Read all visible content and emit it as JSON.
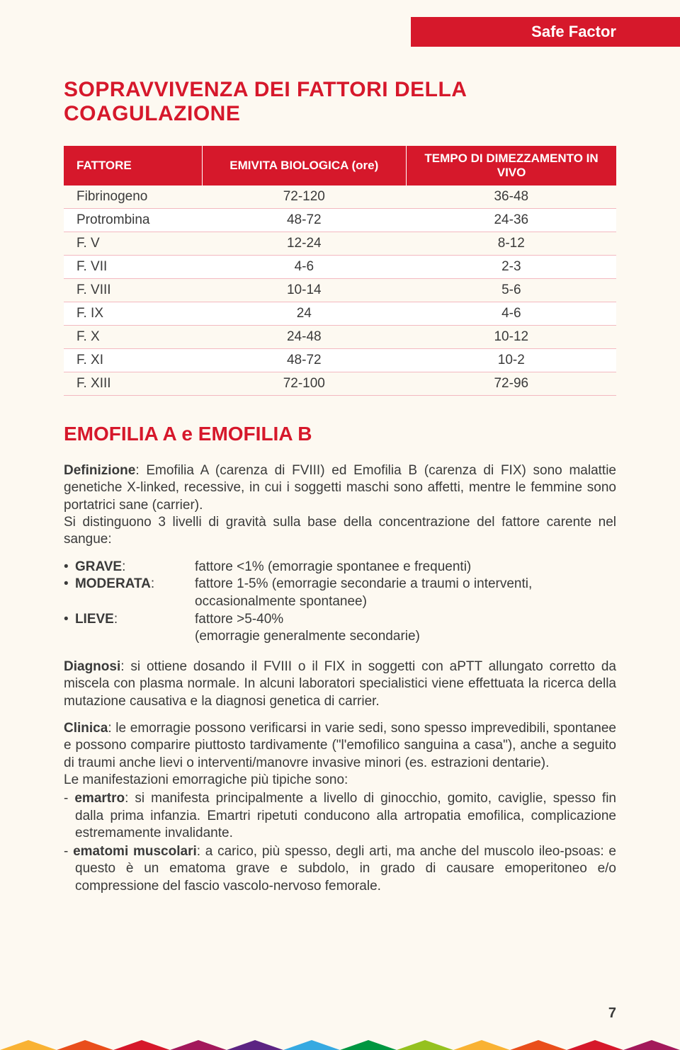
{
  "header": {
    "label": "Safe Factor"
  },
  "main_title": "SOPRAVVIVENZA DEI FATTORI DELLA COAGULAZIONE",
  "table": {
    "columns": [
      "FATTORE",
      "EMIVITA BIOLOGICA (ore)",
      "TEMPO DI DIMEZZAMENTO IN VIVO"
    ],
    "rows": [
      [
        "Fibrinogeno",
        "72-120",
        "36-48"
      ],
      [
        "Protrombina",
        "48-72",
        "24-36"
      ],
      [
        "F. V",
        "12-24",
        "8-12"
      ],
      [
        "F. VII",
        "4-6",
        "2-3"
      ],
      [
        "F. VIII",
        "10-14",
        "5-6"
      ],
      [
        "F. IX",
        "24",
        "4-6"
      ],
      [
        "F. X",
        "24-48",
        "10-12"
      ],
      [
        "F. XI",
        "48-72",
        "10-2"
      ],
      [
        "F. XIII",
        "72-100",
        "72-96"
      ]
    ],
    "header_bg": "#d6182b",
    "row_border": "#f3b9c0"
  },
  "section_title": "EMOFILIA A e EMOFILIA B",
  "definition": {
    "label": "Definizione",
    "text": ": Emofilia A (carenza di FVIII) ed Emofilia B (carenza di FIX) sono malattie genetiche X-linked, recessive, in cui i soggetti maschi sono affetti, mentre le femmine sono portatrici sane (carrier).",
    "text2": "Si distinguono 3 livelli di gravità sulla base della concentrazione del fattore carente nel sangue:"
  },
  "severity": [
    {
      "label": "GRAVE",
      "desc": "fattore <1% (emorragie spontanee e frequenti)"
    },
    {
      "label": "MODERATA",
      "desc": "fattore 1-5% (emorragie secondarie a traumi o interventi, occasionalmente spontanee)"
    },
    {
      "label": "LIEVE",
      "desc": "fattore >5-40%\n(emorragie generalmente secondarie)"
    }
  ],
  "diagnosis": {
    "label": "Diagnosi",
    "text": ": si ottiene dosando il FVIII o il FIX in soggetti con aPTT allungato corretto da miscela con plasma normale. In alcuni laboratori specialistici viene effettuata la ricerca della mutazione causativa e la diagnosi genetica di carrier."
  },
  "clinic": {
    "label": "Clinica",
    "text": ": le emorragie possono verificarsi in varie sedi, sono spesso imprevedibili, spontanee e possono comparire piuttosto tardivamente (\"l'emofilico sanguina a casa\"), anche a seguito di traumi anche lievi o interventi/manovre invasive minori (es. estrazioni dentarie).",
    "text2": "Le manifestazioni emorragiche più tipiche sono:",
    "items": [
      {
        "label": "emartro",
        "text": ": si manifesta principalmente a livello di ginocchio, gomito, caviglie, spesso fin dalla prima infanzia. Emartri ripetuti conducono alla artropatia emofilica, complicazione estremamente invalidante."
      },
      {
        "label": "ematomi muscolari",
        "text": ": a carico, più spesso, degli arti, ma anche del muscolo ileo-psoas: e questo è un ematoma grave e subdolo, in grado di causare emoperitoneo e/o compressione del fascio vascolo-nervoso femorale."
      }
    ]
  },
  "page_number": "7",
  "footer_colors": [
    "#f9b233",
    "#e94e1b",
    "#d6182b",
    "#a3195b",
    "#5c2483",
    "#36a9e1",
    "#009640",
    "#95c11f",
    "#f9b233",
    "#e94e1b",
    "#d6182b",
    "#a3195b"
  ]
}
